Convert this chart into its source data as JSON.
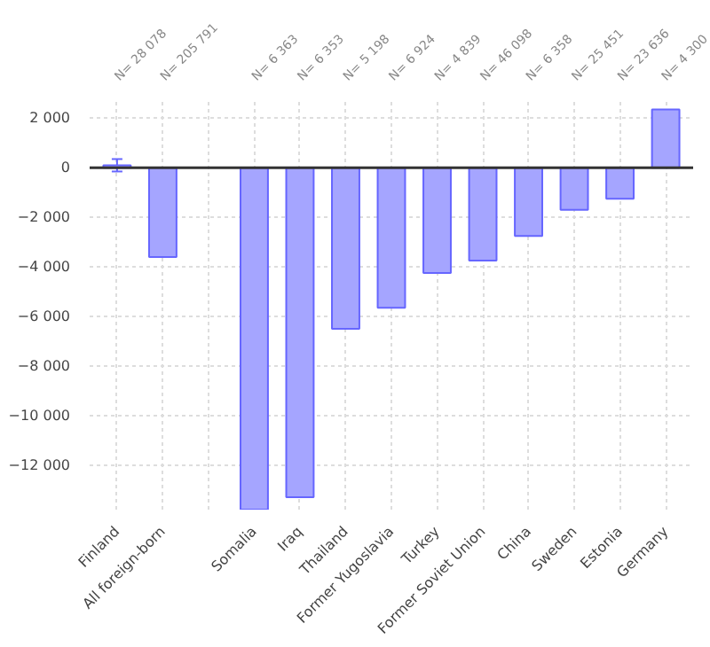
{
  "chart_data": {
    "type": "bar",
    "categories": [
      "Finland",
      "All foreign-born",
      null,
      "Somalia",
      "Iraq",
      "Thailand",
      "Former Yugoslavia",
      "Turkey",
      "Former Soviet Union",
      "China",
      "Sweden",
      "Estonia",
      "Germany"
    ],
    "values": [
      100,
      -3600,
      null,
      -13800,
      -13300,
      -6500,
      -5650,
      -4250,
      -3750,
      -2750,
      -1700,
      -1250,
      2350
    ],
    "errors": [
      250,
      null,
      null,
      null,
      null,
      null,
      null,
      null,
      null,
      null,
      null,
      null,
      null
    ],
    "color": "#a5a5ff",
    "ylim": [
      -13800,
      2800
    ],
    "yticks": [
      {
        "value": 2000,
        "label": "2 000"
      },
      0,
      {
        "value": -2000,
        "label": "−2 000"
      },
      {
        "value": -4000,
        "label": "−4 000"
      },
      {
        "value": -6000,
        "label": "−6 000"
      },
      {
        "value": -8000,
        "label": "−8 000"
      },
      {
        "value": -10000,
        "label": "−10 000"
      },
      {
        "value": -12000,
        "label": "−12 000"
      }
    ],
    "ref_lines": [
      {
        "axis": "y",
        "value": 0,
        "color": "#333333"
      }
    ],
    "annotations": [
      "N= 28 078",
      "N= 205 791",
      "N= 6 363",
      "N= 6 353",
      "N= 5 198",
      "N= 6 924",
      "N= 4 839",
      "N= 46 098",
      "N= 6 358",
      "N= 25 451",
      "N= 23 636",
      "N= 4 300"
    ],
    "grid": true
  }
}
